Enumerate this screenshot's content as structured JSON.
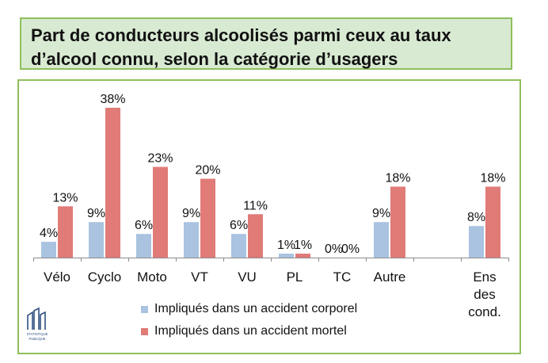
{
  "title": "Part de conducteurs alcoolisés parmi ceux au taux\nd’alcool connu, selon la catégorie d’usagers",
  "chart_data": {
    "type": "bar",
    "categories": [
      "Vélo",
      "Cyclo",
      "Moto",
      "VT",
      "VU",
      "PL",
      "TC",
      "Autre",
      "",
      "Ens des cond."
    ],
    "category_lines": [
      [
        "Vélo"
      ],
      [
        "Cyclo"
      ],
      [
        "Moto"
      ],
      [
        "VT"
      ],
      [
        "VU"
      ],
      [
        "PL"
      ],
      [
        "TC"
      ],
      [
        "Autre"
      ],
      [],
      [
        "Ens",
        "des",
        "cond."
      ]
    ],
    "series": [
      {
        "name": "Impliqués dans un accident corporel",
        "color": "#a9c3e0",
        "values": [
          4,
          9,
          6,
          9,
          6,
          1,
          0,
          9,
          null,
          8
        ],
        "labels": [
          "4%",
          "9%",
          "6%",
          "9%",
          "6%",
          "1%",
          "0%",
          "9%",
          "",
          "8%"
        ]
      },
      {
        "name": "Impliqués dans un accident mortel",
        "color": "#e07b78",
        "values": [
          13,
          38,
          23,
          20,
          11,
          1,
          0,
          18,
          null,
          18
        ],
        "labels": [
          "13%",
          "38%",
          "23%",
          "20%",
          "11%",
          "1%",
          "0%",
          "18%",
          "",
          "18%"
        ]
      }
    ],
    "ylim": [
      0,
      40
    ],
    "xlabel": "",
    "ylabel": "",
    "grid": false,
    "legend_position": "bottom-left"
  },
  "logo": {
    "text_line1": "STATISTIQUE",
    "text_line2": "PUBLIQUE"
  }
}
